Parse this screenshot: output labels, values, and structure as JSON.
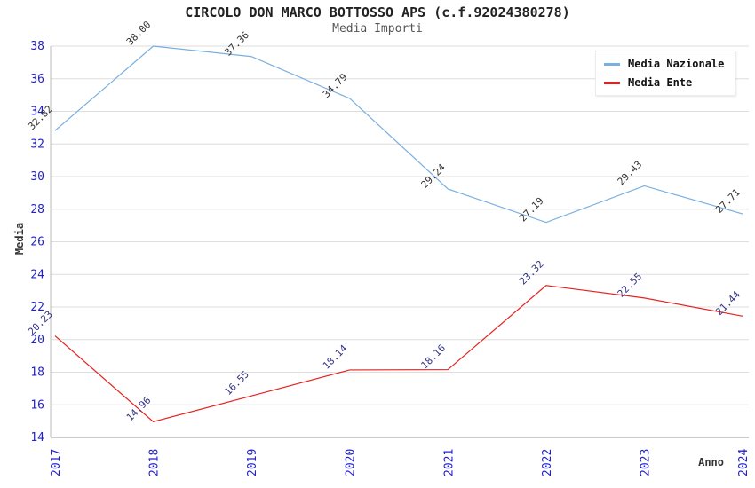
{
  "chart_data": {
    "type": "line",
    "title": "CIRCOLO DON MARCO BOTTOSSO APS (c.f.92024380278)",
    "subtitle": "Media Importi",
    "xlabel": "Anno",
    "ylabel": "Media",
    "categories": [
      "2017",
      "2018",
      "2019",
      "2020",
      "2021",
      "2022",
      "2023",
      "2024"
    ],
    "series": [
      {
        "name": "Media Nazionale",
        "color": "#79afe1",
        "label_color": "#333333",
        "values": [
          32.82,
          38.0,
          37.36,
          34.79,
          29.24,
          27.19,
          29.43,
          27.71
        ]
      },
      {
        "name": "Media Ente",
        "color": "#e42320",
        "label_color": "#333388",
        "values": [
          20.23,
          14.96,
          16.55,
          18.14,
          18.16,
          23.32,
          22.55,
          21.44
        ]
      }
    ],
    "ylim": [
      14,
      38
    ],
    "ytick_step": 2,
    "yticks": [
      14,
      16,
      18,
      20,
      22,
      24,
      26,
      28,
      30,
      32,
      34,
      36,
      38
    ],
    "grid": true,
    "legend_position": "top-right",
    "band_colors": [
      "#f1f1f1",
      "#ffffff"
    ],
    "tick_label_color": "#2222cc",
    "point_label_decimals": 2
  }
}
